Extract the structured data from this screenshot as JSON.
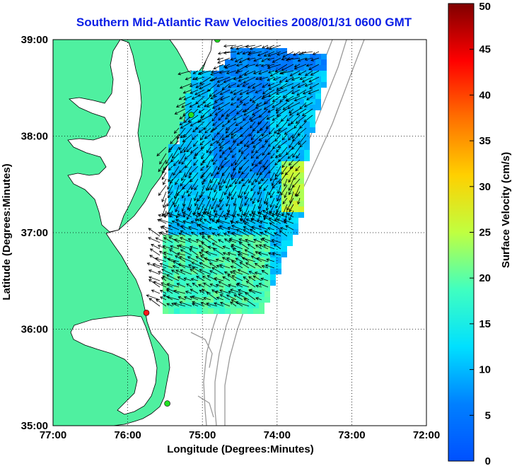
{
  "title": "Southern Mid-Atlantic Raw Velocities 2008/01/31 0600 GMT",
  "x_axis": {
    "label": "Longitude (Degrees:Minutes)",
    "ticks": [
      "77:00",
      "76:00",
      "75:00",
      "74:00",
      "73:00",
      "72:00"
    ],
    "range": [
      -77,
      -72
    ]
  },
  "y_axis": {
    "label": "Latitude (Degrees:Minutes)",
    "ticks": [
      "39:00",
      "38:00",
      "37:00",
      "36:00",
      "35:00"
    ],
    "range": [
      35,
      39
    ]
  },
  "colorbar": {
    "label": "Surface Velocity (cm/s)",
    "ticks": [
      "50",
      "45",
      "40",
      "35",
      "30",
      "25",
      "20",
      "15",
      "10",
      "5",
      "0"
    ],
    "range": [
      0,
      50
    ],
    "colormap": "jet"
  },
  "grid": "dotted",
  "colors": {
    "land": "#4ff0a0",
    "water": "#ffffff",
    "bathymetry": "#999999",
    "station_active": "#22e022",
    "station_fault": "#ff1a1a"
  },
  "stations": [
    {
      "lon": -74.8,
      "lat": 39.0,
      "status": "active"
    },
    {
      "lon": -75.15,
      "lat": 38.22,
      "status": "active"
    },
    {
      "lon": -75.75,
      "lat": 36.17,
      "status": "fault"
    },
    {
      "lon": -75.47,
      "lat": 35.23,
      "status": "active"
    }
  ]
}
